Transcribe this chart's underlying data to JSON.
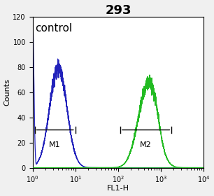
{
  "title": "293",
  "xlabel": "FL1-H",
  "ylabel": "Counts",
  "ylim": [
    0,
    120
  ],
  "xlim_log": [
    0,
    4
  ],
  "background_color": "#f0f0f0",
  "plot_bg_color": "#ffffff",
  "blue_color": "#2222bb",
  "green_color": "#22bb22",
  "control_label": "control",
  "m1_label": "M1",
  "m2_label": "M2",
  "m1_x_left_log": 0.05,
  "m1_x_right_log": 1.0,
  "m2_x_left_log": 2.05,
  "m2_x_right_log": 3.25,
  "marker_y": 30,
  "title_fontsize": 13,
  "axis_label_fontsize": 8,
  "tick_fontsize": 7,
  "control_fontsize": 11
}
